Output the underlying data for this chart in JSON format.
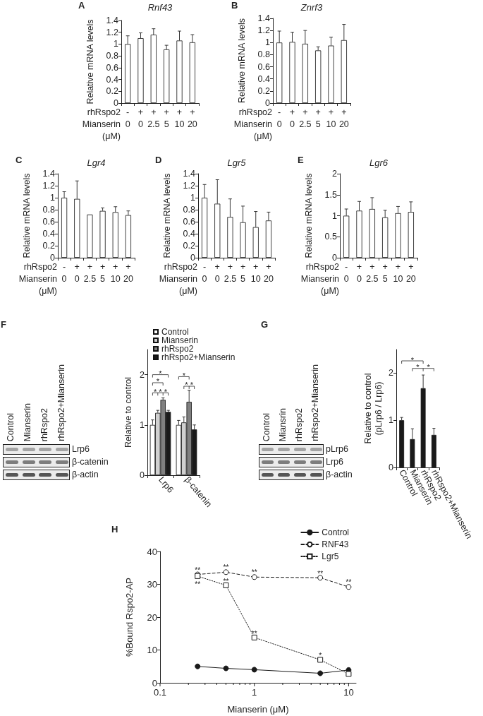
{
  "chart_data": [
    {
      "type": "bar",
      "title": "Rnf43",
      "ylabel": "Relative mRNA levels",
      "xlabel": "rhRspo2\nMianserin\n(μM)",
      "annotations": [
        "A"
      ],
      "categories": [
        "-\n0",
        "+\n0",
        "+\n2.5",
        "+\n5",
        "+\n10",
        "+\n20"
      ],
      "values": [
        1.0,
        1.1,
        1.16,
        0.91,
        1.06,
        1.03
      ],
      "errors": [
        [
          1.0,
          1.14
        ],
        [
          1.1,
          1.19
        ],
        [
          1.16,
          1.26
        ],
        [
          0.91,
          0.98
        ],
        [
          1.06,
          1.22
        ],
        [
          1.03,
          1.16
        ]
      ],
      "color": "#ffffff",
      "ylim": [
        0,
        1.4
      ],
      "yticks": [
        0,
        0.2,
        0.4,
        0.6,
        0.8,
        1,
        1.2,
        1.4
      ]
    },
    {
      "type": "bar",
      "title": "Znrf3",
      "ylabel": "Relative mRNA levels",
      "xlabel": "rhRspo2\nMianserin\n(μM)",
      "annotations": [
        "B"
      ],
      "categories": [
        "-\n0",
        "+\n0",
        "+\n2.5",
        "+\n5",
        "+\n10",
        "+\n20"
      ],
      "values": [
        1.0,
        1.01,
        0.98,
        0.87,
        0.95,
        1.04
      ],
      "errors": [
        [
          1.0,
          1.19
        ],
        [
          1.01,
          1.17
        ],
        [
          0.98,
          1.2
        ],
        [
          0.87,
          0.93
        ],
        [
          0.95,
          1.09
        ],
        [
          1.04,
          1.3
        ]
      ],
      "color": "#ffffff",
      "ylim": [
        0,
        1.4
      ],
      "yticks": [
        0,
        0.2,
        0.4,
        0.6,
        0.8,
        1,
        1.2,
        1.4
      ]
    },
    {
      "type": "bar",
      "title": "Lgr4",
      "ylabel": "Relative mRNA levels",
      "xlabel": "rhRspo2\nMianserin\n(μM)",
      "annotations": [
        "C"
      ],
      "categories": [
        "-\n0",
        "+\n0",
        "+\n2.5",
        "+\n5",
        "+\n10",
        "+\n20"
      ],
      "values": [
        1.0,
        0.98,
        0.72,
        0.78,
        0.76,
        0.71
      ],
      "errors": [
        [
          1.0,
          1.1
        ],
        [
          0.98,
          1.28
        ],
        null,
        [
          0.78,
          0.83
        ],
        [
          0.76,
          0.85
        ],
        [
          0.71,
          0.78
        ]
      ],
      "color": "#ffffff",
      "ylim": [
        0,
        1.4
      ],
      "yticks": [
        0,
        0.2,
        0.4,
        0.6,
        0.8,
        1,
        1.2,
        1.4
      ]
    },
    {
      "type": "bar",
      "title": "Lgr5",
      "ylabel": "Relative mRNA levels",
      "xlabel": "rhRspo2\nMianserin\n(μM)",
      "annotations": [
        "D"
      ],
      "categories": [
        "-\n0",
        "+\n0",
        "+\n2.5",
        "+\n5",
        "+\n10",
        "+\n20"
      ],
      "values": [
        1.0,
        0.9,
        0.68,
        0.59,
        0.51,
        0.62
      ],
      "errors": [
        [
          1.0,
          1.22
        ],
        [
          0.9,
          1.3
        ],
        [
          0.68,
          0.98
        ],
        [
          0.59,
          0.86
        ],
        [
          0.51,
          0.77
        ],
        [
          0.62,
          0.76
        ]
      ],
      "color": "#ffffff",
      "ylim": [
        0,
        1.4
      ],
      "yticks": [
        0,
        0.2,
        0.4,
        0.6,
        0.8,
        1,
        1.2,
        1.4
      ]
    },
    {
      "type": "bar",
      "title": "Lgr6",
      "ylabel": "Relative mRNA levels",
      "xlabel": "rhRspo2\nMianserin\n(μM)",
      "annotations": [
        "E"
      ],
      "categories": [
        "-\n0",
        "+\n0",
        "+\n2.5",
        "+\n5",
        "+\n10",
        "+\n20"
      ],
      "values": [
        1.0,
        1.12,
        1.16,
        0.96,
        1.06,
        1.09
      ],
      "errors": [
        [
          1.0,
          1.16
        ],
        [
          1.12,
          1.34
        ],
        [
          1.16,
          1.43
        ],
        [
          0.96,
          1.13
        ],
        [
          1.06,
          1.22
        ],
        [
          1.09,
          1.33
        ]
      ],
      "color": "#ffffff",
      "ylim": [
        0,
        2
      ],
      "yticks": [
        0,
        0.5,
        1,
        1.5,
        2
      ]
    },
    {
      "type": "other",
      "annotations": [
        "F"
      ],
      "categories": [
        "Control",
        "Mianserin",
        "rhRspo2",
        "rhRspo2+Mianserin"
      ],
      "y_categories": [
        "Lrp6",
        "β-catenin",
        "β-actin"
      ]
    },
    {
      "type": "bar",
      "ylabel": "Relative to control",
      "categories": [
        "Lrp6",
        "β-catenin"
      ],
      "series": [
        {
          "name": "Control",
          "color": "#ffffff",
          "values": [
            1.0,
            1.0
          ],
          "errors": [
            [
              1.0,
              1.1
            ],
            [
              1.0,
              1.09
            ]
          ]
        },
        {
          "name": "Mianserin",
          "color": "#d0d0d0",
          "values": [
            1.24,
            1.05
          ],
          "errors": [
            [
              1.24,
              1.29
            ],
            [
              1.05,
              1.16
            ]
          ]
        },
        {
          "name": "rhRspo2",
          "color": "#808080",
          "values": [
            1.5,
            1.46
          ],
          "errors": [
            [
              1.5,
              1.54
            ],
            [
              1.46,
              1.69
            ]
          ]
        },
        {
          "name": "rhRspo2+Mianserin",
          "color": "#1a1a1a",
          "values": [
            1.26,
            0.91
          ],
          "errors": [
            [
              1.26,
              1.29
            ],
            [
              0.91,
              1.0
            ]
          ]
        }
      ],
      "ylim": [
        0,
        2.5
      ],
      "yticks": [
        0,
        1,
        2
      ],
      "legend": "top",
      "annotations": [
        "*",
        "*",
        "*",
        "*",
        "*",
        "*",
        "*",
        "*"
      ]
    },
    {
      "type": "other",
      "annotations": [
        "G"
      ],
      "categories": [
        "Control",
        "Miansrin",
        "rhRspo2",
        "rhRspo2+Mianserin"
      ],
      "y_categories": [
        "pLrp6",
        "Lrp6",
        "β-actin"
      ]
    },
    {
      "type": "bar",
      "ylabel": "Relative to control\n(pLrp6 / Lrp6)",
      "categories": [
        "Control",
        "Mianserin",
        "rhRspo2",
        "rhRspo2+Mianserin"
      ],
      "values": [
        1.0,
        0.6,
        1.68,
        0.69
      ],
      "errors": [
        [
          1.0,
          1.06
        ],
        [
          0.6,
          0.82
        ],
        [
          1.68,
          1.96
        ],
        [
          0.69,
          0.83
        ]
      ],
      "color": "#1a1a1a",
      "ylim": [
        0,
        2.5
      ],
      "yticks": [
        0,
        1,
        2
      ],
      "annotations": [
        "*",
        "*",
        "*"
      ]
    },
    {
      "type": "line",
      "xlabel": "Mianserin (μM)",
      "ylabel": "%Bound Rspo2-AP",
      "annotations": [
        "H",
        "**",
        "**",
        "**",
        "**",
        "**",
        "**",
        "**",
        "*",
        "**"
      ],
      "x": [
        0.25,
        0.5,
        1,
        5,
        10
      ],
      "series": [
        {
          "name": "Control",
          "color": "#1a1a1a",
          "values": [
            5.0,
            4.4,
            4.0,
            2.9,
            3.9
          ],
          "marker": "circle",
          "line_style": "solid"
        },
        {
          "name": "RNF43",
          "color": "#1a1a1a",
          "values": [
            33.0,
            33.7,
            32.2,
            32.0,
            29.2
          ],
          "marker": "circle",
          "line_style": "dashed"
        },
        {
          "name": "Lgr5",
          "color": "#1a1a1a",
          "values": [
            32.5,
            29.7,
            13.8,
            7.0,
            2.7
          ],
          "marker": "square",
          "line_style": "dotted"
        }
      ],
      "log": "x",
      "xlim": [
        0.1,
        12
      ],
      "xticks": [
        0.1,
        {
          "value": 0.2,
          "label": null
        },
        {
          "value": 0.3,
          "label": null
        },
        {
          "value": 0.4,
          "label": null
        },
        {
          "value": 0.5,
          "label": null
        },
        {
          "value": 0.6,
          "label": null
        },
        {
          "value": 0.7,
          "label": null
        },
        {
          "value": 0.8,
          "label": null
        },
        {
          "value": 0.9,
          "label": null
        },
        1,
        {
          "value": 2,
          "label": null
        },
        {
          "value": 3,
          "label": null
        },
        {
          "value": 4,
          "label": null
        },
        {
          "value": 5,
          "label": null
        },
        {
          "value": 6,
          "label": null
        },
        {
          "value": 7,
          "label": null
        },
        {
          "value": 8,
          "label": null
        },
        {
          "value": 9,
          "label": null
        },
        10
      ],
      "ylim": [
        0,
        40
      ],
      "yticks": [
        0,
        10,
        20,
        30,
        40
      ],
      "legend": "top right"
    }
  ]
}
